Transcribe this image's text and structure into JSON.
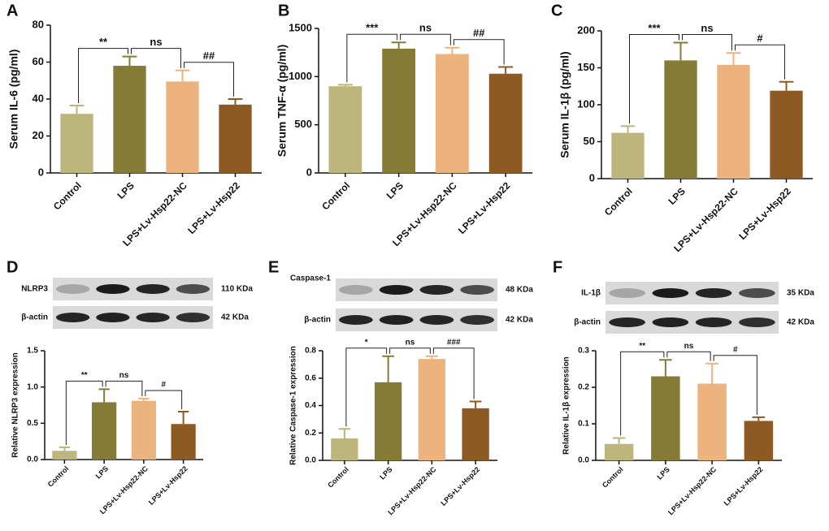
{
  "chart_data": [
    {
      "type": "bar",
      "panel": "A",
      "ylabel": "Serum IL-6 (pg/ml)",
      "categories": [
        "Control",
        "LPS",
        "LPS+Lv-Hsp22-NC",
        "LPS+Lv-Hsp22"
      ],
      "values": [
        32,
        58,
        49.5,
        37
      ],
      "errors": [
        4.5,
        5,
        6,
        3
      ],
      "colors": [
        "#bcb57c",
        "#857b36",
        "#ecb37f",
        "#8e5a23"
      ],
      "ylim": [
        0,
        80
      ],
      "yticks": [
        0,
        20,
        40,
        60,
        80
      ],
      "annotations": [
        "**",
        "ns",
        "##"
      ]
    },
    {
      "type": "bar",
      "panel": "B",
      "ylabel": "Serum TNF-α (pg/ml)",
      "categories": [
        "Control",
        "LPS",
        "LPS+Lv-Hsp22-NC",
        "LPS+Lv-Hsp22"
      ],
      "values": [
        900,
        1290,
        1235,
        1030
      ],
      "errors": [
        15,
        65,
        65,
        70
      ],
      "colors": [
        "#bcb57c",
        "#857b36",
        "#ecb37f",
        "#8e5a23"
      ],
      "ylim": [
        0,
        1500
      ],
      "yticks": [
        0,
        500,
        1000,
        1500
      ],
      "annotations": [
        "***",
        "ns",
        "##"
      ]
    },
    {
      "type": "bar",
      "panel": "C",
      "ylabel": "Serum IL-1β (pg/ml)",
      "categories": [
        "Control",
        "LPS",
        "LPS+Lv-Hsp22-NC",
        "LPS+Lv-Hsp22"
      ],
      "values": [
        62,
        160,
        154,
        119
      ],
      "errors": [
        9,
        24,
        16,
        12
      ],
      "colors": [
        "#bcb57c",
        "#857b36",
        "#ecb37f",
        "#8e5a23"
      ],
      "ylim": [
        0,
        200
      ],
      "yticks": [
        0,
        50,
        100,
        150,
        200
      ],
      "annotations": [
        "***",
        "ns",
        "#"
      ]
    },
    {
      "type": "bar",
      "panel": "D",
      "ylabel": "Relative NLRP3 expression",
      "categories": [
        "Control",
        "LPS",
        "LPS+Lv-Hsp22-NC",
        "LPS+Lv-Hsp22"
      ],
      "values": [
        0.12,
        0.79,
        0.81,
        0.49
      ],
      "errors": [
        0.05,
        0.18,
        0.03,
        0.17
      ],
      "colors": [
        "#bcb57c",
        "#857b36",
        "#ecb37f",
        "#8e5a23"
      ],
      "ylim": [
        0,
        1.5
      ],
      "yticks": [
        {
          "value": 0,
          "label": "0.0"
        },
        0.5,
        {
          "value": 1,
          "label": "1.0"
        },
        1.5
      ],
      "annotations": [
        "**",
        "ns",
        "#"
      ],
      "blots": [
        {
          "label": "NLRP3",
          "size": "110 KDa"
        },
        {
          "label": "β-actin",
          "size": "42 KDa"
        }
      ]
    },
    {
      "type": "bar",
      "panel": "E",
      "ylabel": "Relative Caspase-1 expression",
      "categories": [
        "Control",
        "LPS",
        "LPS+Lv-Hsp22-NC",
        "LPS+Lv-Hsp22"
      ],
      "values": [
        0.16,
        0.57,
        0.74,
        0.38
      ],
      "errors": [
        0.07,
        0.19,
        0.02,
        0.05
      ],
      "colors": [
        "#bcb57c",
        "#857b36",
        "#ecb37f",
        "#8e5a23"
      ],
      "ylim": [
        0,
        0.8
      ],
      "yticks": [
        {
          "value": 0,
          "label": "0.0"
        },
        0.2,
        0.4,
        0.6,
        0.8
      ],
      "annotations": [
        "*",
        "ns",
        "###"
      ],
      "blots": [
        {
          "label": "Caspase-1",
          "size": "48 KDa"
        },
        {
          "label": "β-actin",
          "size": "42 KDa"
        }
      ]
    },
    {
      "type": "bar",
      "panel": "F",
      "ylabel": "Relative IL-1β expression",
      "categories": [
        "Control",
        "LPS",
        "LPS+Lv-Hsp22-NC",
        "LPS+Lv-Hsp22"
      ],
      "values": [
        0.045,
        0.23,
        0.21,
        0.108
      ],
      "errors": [
        0.016,
        0.045,
        0.055,
        0.01
      ],
      "colors": [
        "#bcb57c",
        "#857b36",
        "#ecb37f",
        "#8e5a23"
      ],
      "ylim": [
        0,
        0.3
      ],
      "yticks": [
        {
          "value": 0,
          "label": "0.0"
        },
        0.1,
        0.2,
        0.3
      ],
      "annotations": [
        "**",
        "ns",
        "#"
      ],
      "blots": [
        {
          "label": "IL-1β",
          "size": "35 KDa"
        },
        {
          "label": "β-actin",
          "size": "42 KDa"
        }
      ]
    }
  ]
}
